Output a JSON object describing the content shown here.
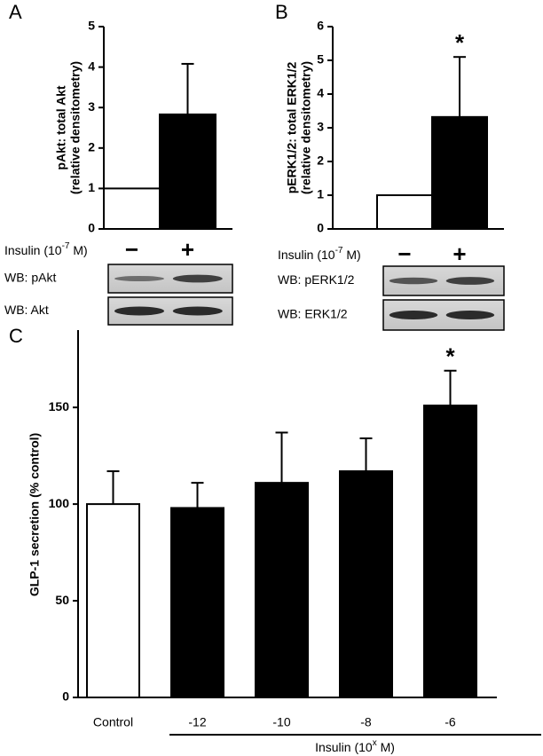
{
  "chart_data": [
    {
      "type": "bar",
      "panel": "A",
      "ylabel": [
        "pAkt: total Akt",
        "(relative densitometry)"
      ],
      "categories": [
        "−",
        "+"
      ],
      "values": [
        1,
        2.83
      ],
      "errors": [
        null,
        1.25
      ],
      "colors": [
        "#ffffff",
        "#000000"
      ],
      "significance": [
        null,
        null
      ],
      "ylim": [
        0,
        5
      ],
      "yticks": [
        0,
        1,
        2,
        3,
        4,
        5
      ],
      "xlabel": [
        "Insulin (10",
        "-7",
        " M)"
      ],
      "blots": [
        "WB: pAkt",
        "WB: Akt"
      ]
    },
    {
      "type": "bar",
      "panel": "B",
      "ylabel": [
        "pERK1/2: total ERK1/2",
        "(relative densitometry)"
      ],
      "categories": [
        "−",
        "+"
      ],
      "values": [
        1,
        3.32
      ],
      "errors": [
        null,
        1.78
      ],
      "colors": [
        "#ffffff",
        "#000000"
      ],
      "significance": [
        null,
        "*"
      ],
      "ylim": [
        0,
        6
      ],
      "yticks": [
        0,
        1,
        2,
        3,
        4,
        5,
        6
      ],
      "xlabel": [
        "Insulin (10",
        "-7",
        " M)"
      ],
      "blots": [
        "WB: pERK1/2",
        "WB: ERK1/2"
      ]
    },
    {
      "type": "bar",
      "panel": "C",
      "ylabel": [
        "GLP-1 secretion (% control)"
      ],
      "categories": [
        "Control",
        "-12",
        "-10",
        "-8",
        "-6"
      ],
      "values": [
        100,
        98,
        111,
        117,
        151
      ],
      "errors": [
        17,
        13,
        26,
        17,
        18
      ],
      "colors": [
        "#ffffff",
        "#000000",
        "#000000",
        "#000000",
        "#000000"
      ],
      "significance": [
        null,
        null,
        null,
        null,
        "*"
      ],
      "ylim": [
        0,
        190
      ],
      "yticks": [
        0,
        50,
        100,
        150
      ],
      "xlabel": [
        "Insulin (10",
        "x",
        " M)"
      ]
    }
  ]
}
